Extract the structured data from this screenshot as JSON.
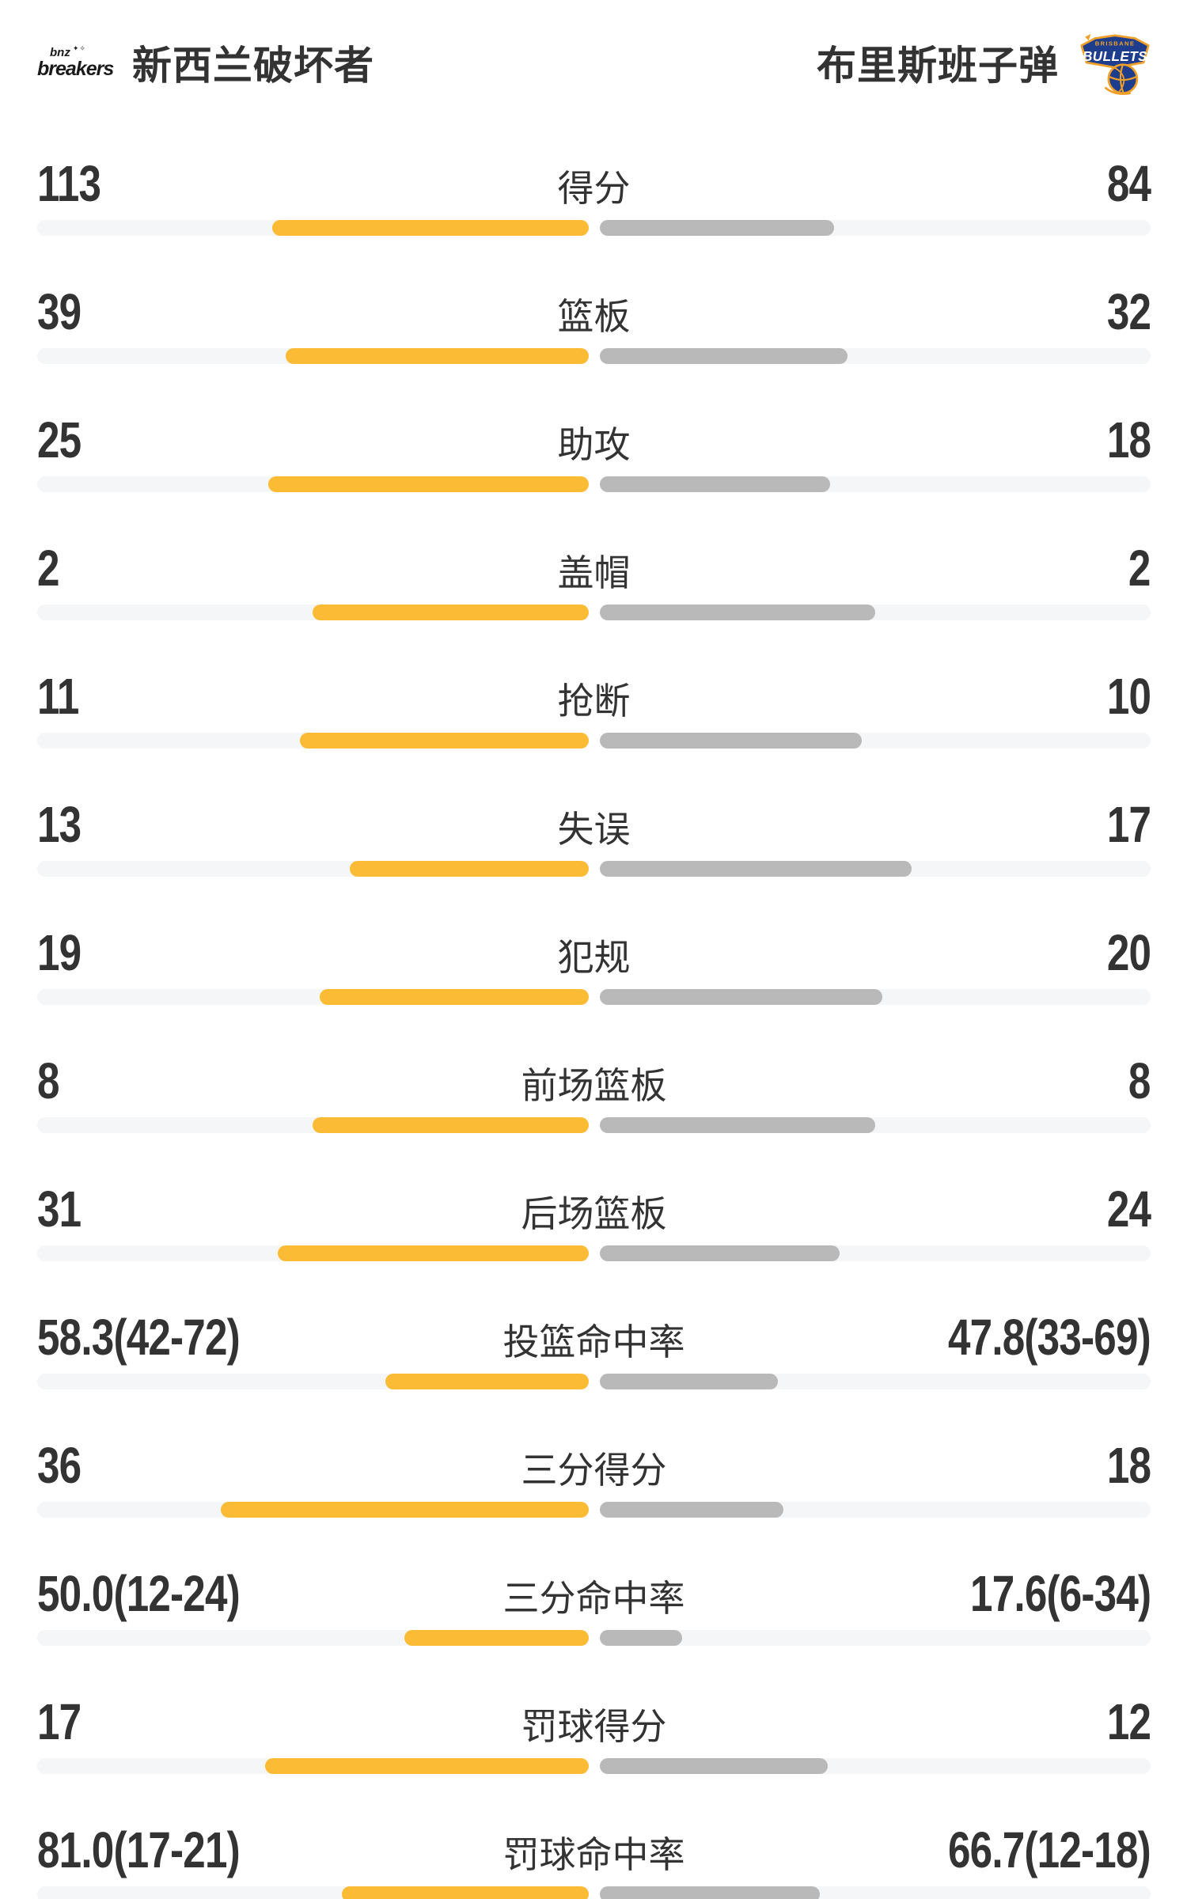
{
  "header": {
    "home_team": {
      "name": "新西兰破坏者",
      "logo": {
        "line1": "bnz",
        "line2": "breakers",
        "sparkles": "✦✧"
      }
    },
    "away_team": {
      "name": "布里斯班子弹",
      "logo": {
        "line1": "BRISBANE",
        "line2": "BULLETS"
      }
    }
  },
  "colors": {
    "home_fill": "#FBBB34",
    "away_fill": "#B9B9B9",
    "bar_track": "#F5F6F8",
    "text_dark": "#333333",
    "bullets_navy": "#1E3E8D",
    "bullets_gold": "#F0A028"
  },
  "chart_data": {
    "type": "bar",
    "layout": "paired horizontal bars growing outward from center; left fill yellow (home), right fill gray (away); fill fraction = value/(left+right) for counts, value/(value+100) for percentages",
    "teams": [
      "新西兰破坏者",
      "布里斯班子弹"
    ],
    "rows": [
      {
        "label": "得分",
        "left": "113",
        "right": "84",
        "left_value": 113,
        "right_value": 84,
        "format": "count"
      },
      {
        "label": "篮板",
        "left": "39",
        "right": "32",
        "left_value": 39,
        "right_value": 32,
        "format": "count"
      },
      {
        "label": "助攻",
        "left": "25",
        "right": "18",
        "left_value": 25,
        "right_value": 18,
        "format": "count"
      },
      {
        "label": "盖帽",
        "left": "2",
        "right": "2",
        "left_value": 2,
        "right_value": 2,
        "format": "count"
      },
      {
        "label": "抢断",
        "left": "11",
        "right": "10",
        "left_value": 11,
        "right_value": 10,
        "format": "count"
      },
      {
        "label": "失误",
        "left": "13",
        "right": "17",
        "left_value": 13,
        "right_value": 17,
        "format": "count"
      },
      {
        "label": "犯规",
        "left": "19",
        "right": "20",
        "left_value": 19,
        "right_value": 20,
        "format": "count"
      },
      {
        "label": "前场篮板",
        "left": "8",
        "right": "8",
        "left_value": 8,
        "right_value": 8,
        "format": "count"
      },
      {
        "label": "后场篮板",
        "left": "31",
        "right": "24",
        "left_value": 31,
        "right_value": 24,
        "format": "count"
      },
      {
        "label": "投篮命中率",
        "left": "58.3(42-72)",
        "right": "47.8(33-69)",
        "left_value": 58.3,
        "right_value": 47.8,
        "format": "percent"
      },
      {
        "label": "三分得分",
        "left": "36",
        "right": "18",
        "left_value": 36,
        "right_value": 18,
        "format": "count"
      },
      {
        "label": "三分命中率",
        "left": "50.0(12-24)",
        "right": "17.6(6-34)",
        "left_value": 50.0,
        "right_value": 17.6,
        "format": "percent"
      },
      {
        "label": "罚球得分",
        "left": "17",
        "right": "12",
        "left_value": 17,
        "right_value": 12,
        "format": "count"
      },
      {
        "label": "罚球命中率",
        "left": "81.0(17-21)",
        "right": "66.7(12-18)",
        "left_value": 81.0,
        "right_value": 66.7,
        "format": "percent"
      }
    ]
  }
}
